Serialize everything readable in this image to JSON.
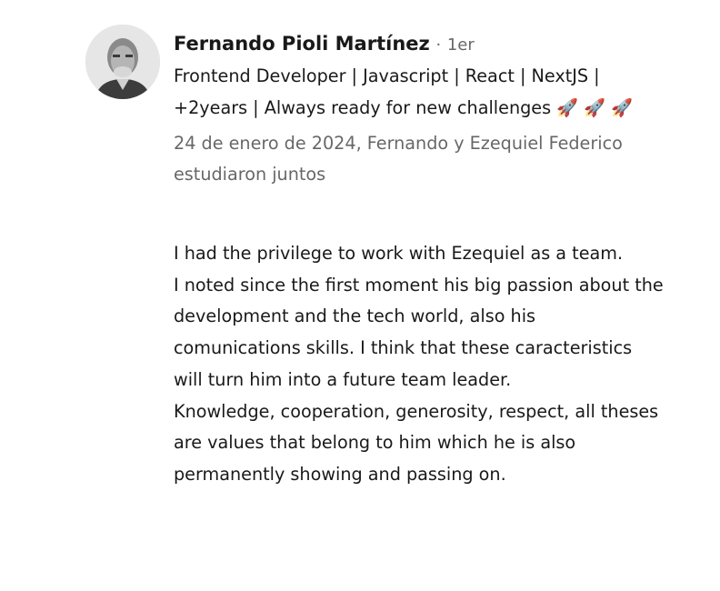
{
  "recommendation": {
    "author_name": "Fernando Pioli Martínez",
    "separator": "·",
    "connection_degree": "1er",
    "headline": "Frontend Developer | Javascript | React | NextJS | +2years | Always ready for new challenges 🚀 🚀 🚀",
    "relationship": "24 de enero de 2024, Fernando y Ezequiel Federico estudiaron juntos",
    "text": "I had the privilege to work with Ezequiel as a team.\nI noted since the first moment his big passion about the development and the tech world, also his comunications skills. I think that these caracteristics will turn him into a future team leader.\nKnowledge, cooperation, generosity, respect, all theses are values that belong to him which he is also permanently showing and passing on."
  }
}
